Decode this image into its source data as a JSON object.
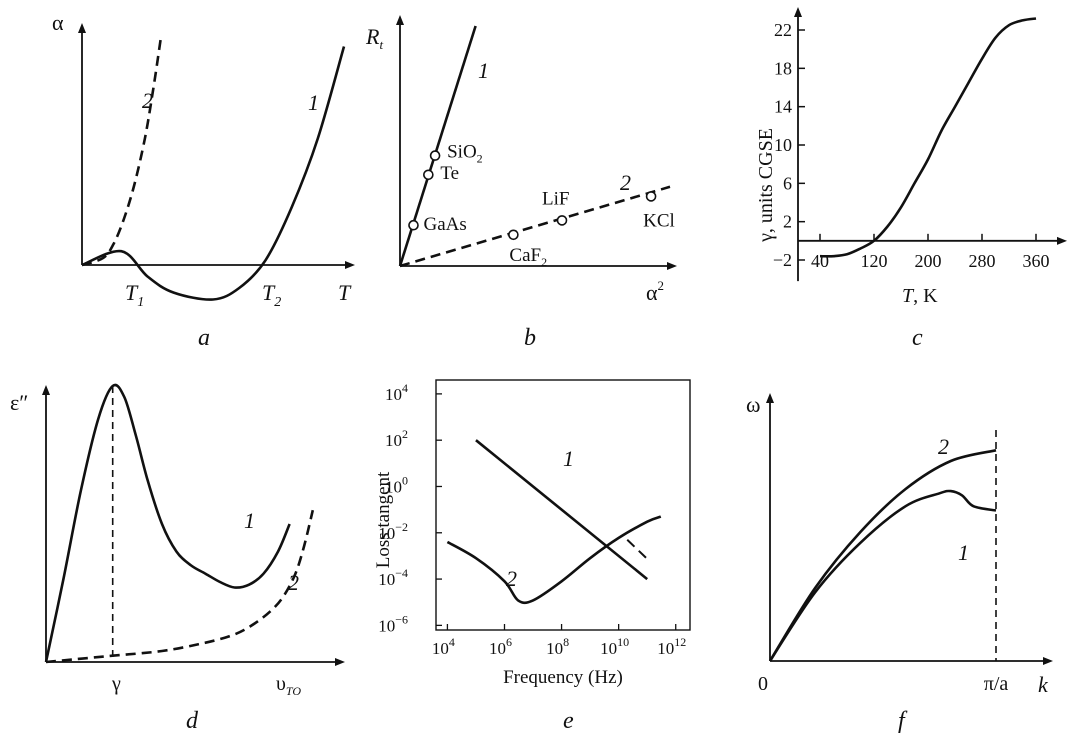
{
  "panels": {
    "a": {
      "caption": "a",
      "ylabel": "α",
      "xlabel": "T",
      "t1": "T",
      "t1_sub": "1",
      "t2": "T",
      "t2_sub": "2",
      "curve1": "1",
      "curve2": "2"
    },
    "b": {
      "caption": "b",
      "ylabel": "R",
      "ylabel_sub": "t",
      "xlabel": "α",
      "xlabel_sup": "2",
      "line1": "1",
      "line2": "2"
    },
    "c": {
      "caption": "c",
      "ylabel": "γ, units CGSE",
      "xlabel_italic": "T",
      "xlabel_rest": ", K"
    },
    "d": {
      "caption": "d",
      "ylabel": "ε″",
      "xtick1": "γ",
      "xtick2": "υ",
      "xtick2_sub": "TO",
      "curve1": "1",
      "curve2": "2"
    },
    "e": {
      "caption": "e",
      "ylabel": "Loss tangent",
      "xlabel": "Frequency (Hz)",
      "line1": "1",
      "curve2": "2"
    },
    "f": {
      "caption": "f",
      "ylabel": "ω",
      "xlabel": "k",
      "origin": "0",
      "xtick": "π/a",
      "curve1": "1",
      "curve2": "2"
    }
  },
  "chart_data": [
    {
      "panel": "a",
      "type": "line",
      "series": [
        {
          "name": "1",
          "x": [
            0.0,
            0.15,
            0.25,
            0.35,
            0.5,
            0.6,
            0.7,
            0.8,
            0.9,
            1.0
          ],
          "y": [
            0.0,
            0.06,
            -0.05,
            -0.12,
            -0.15,
            -0.1,
            0.02,
            0.25,
            0.55,
            0.95
          ]
        },
        {
          "name": "2",
          "x": [
            0.0,
            0.08,
            0.12,
            0.16,
            0.2,
            0.24,
            0.27,
            0.3
          ],
          "y": [
            0.0,
            0.03,
            0.09,
            0.2,
            0.35,
            0.55,
            0.75,
            0.98
          ]
        }
      ]
    },
    {
      "panel": "b",
      "type": "scatter",
      "series": [
        {
          "name": "1",
          "x": [
            0.0,
            0.28
          ],
          "y": [
            0.0,
            1.0
          ]
        },
        {
          "name": "2",
          "x": [
            0.0,
            1.0
          ],
          "y": [
            0.0,
            0.33
          ]
        }
      ],
      "points": [
        {
          "label": "GaAs",
          "sub": "",
          "x": 0.05,
          "y": 0.17
        },
        {
          "label": "Te",
          "sub": "",
          "x": 0.105,
          "y": 0.38
        },
        {
          "label": "SiO",
          "sub": "2",
          "x": 0.13,
          "y": 0.46
        },
        {
          "label": "CaF",
          "sub": "2",
          "x": 0.42,
          "y": 0.13
        },
        {
          "label": "LiF",
          "sub": "",
          "x": 0.6,
          "y": 0.19
        },
        {
          "label": "KCl",
          "sub": "",
          "x": 0.93,
          "y": 0.29
        }
      ]
    },
    {
      "panel": "c",
      "type": "line",
      "xticks": [
        40,
        120,
        200,
        280,
        360
      ],
      "yticks": [
        -2,
        2,
        6,
        10,
        14,
        18,
        22
      ],
      "xlim": [
        0,
        380
      ],
      "ylim": [
        -4,
        25
      ],
      "series": [
        {
          "name": "",
          "x": [
            40,
            60,
            80,
            100,
            120,
            140,
            160,
            180,
            200,
            220,
            240,
            260,
            280,
            300,
            320,
            340,
            360
          ],
          "y": [
            -1.6,
            -1.6,
            -1.4,
            -0.8,
            0.0,
            1.5,
            3.5,
            6.0,
            8.5,
            11.5,
            14.0,
            16.5,
            19.0,
            21.2,
            22.5,
            23.0,
            23.2
          ]
        }
      ]
    },
    {
      "panel": "d",
      "type": "line",
      "series": [
        {
          "name": "1",
          "x": [
            0.0,
            0.06,
            0.12,
            0.18,
            0.23,
            0.27,
            0.31,
            0.35,
            0.4,
            0.45,
            0.5,
            0.55,
            0.6,
            0.65,
            0.7,
            0.75,
            0.8,
            0.84
          ],
          "y": [
            0.0,
            0.3,
            0.62,
            0.88,
            1.0,
            0.96,
            0.82,
            0.66,
            0.5,
            0.4,
            0.35,
            0.32,
            0.29,
            0.27,
            0.28,
            0.32,
            0.4,
            0.5
          ]
        },
        {
          "name": "2",
          "x": [
            0.0,
            0.2,
            0.4,
            0.55,
            0.65,
            0.72,
            0.78,
            0.82,
            0.86,
            0.89,
            0.92
          ],
          "y": [
            0.0,
            0.02,
            0.04,
            0.07,
            0.1,
            0.14,
            0.19,
            0.24,
            0.32,
            0.42,
            0.55
          ]
        }
      ]
    },
    {
      "panel": "e",
      "type": "line",
      "ylog": true,
      "xticks": [
        "10^4",
        "10^6",
        "10^8",
        "10^10",
        "10^12"
      ],
      "yticks": [
        "10^-6",
        "10^-4",
        "10^-2",
        "10^0",
        "10^2",
        "10^4"
      ],
      "series": [
        {
          "name": "1",
          "x": [
            100000.0,
            1000000.0,
            10000000.0,
            100000000.0,
            1000000000.0,
            10000000000.0,
            100000000000.0
          ],
          "y": [
            100,
            10,
            1,
            0.1,
            0.01,
            0.001,
            0.0001
          ]
        },
        {
          "name": "2",
          "x": [
            10000.0,
            100000.0,
            1000000.0,
            3000000.0,
            10000000.0,
            100000000.0,
            1000000000.0,
            10000000000.0,
            100000000000.0,
            300000000000.0
          ],
          "y": [
            0.004,
            0.0008,
            8e-05,
            1.2e-05,
            1.2e-05,
            8e-05,
            0.0008,
            0.006,
            0.03,
            0.05
          ]
        }
      ]
    },
    {
      "panel": "f",
      "type": "line",
      "series": [
        {
          "name": "2",
          "x": [
            0.0,
            0.2,
            0.4,
            0.6,
            0.8,
            1.0
          ],
          "y": [
            0.0,
            0.34,
            0.6,
            0.8,
            0.93,
            0.98
          ]
        },
        {
          "name": "1",
          "x": [
            0.0,
            0.2,
            0.4,
            0.6,
            0.75,
            0.8,
            0.85,
            0.9,
            1.0
          ],
          "y": [
            0.0,
            0.32,
            0.55,
            0.72,
            0.78,
            0.79,
            0.77,
            0.72,
            0.7
          ]
        }
      ]
    }
  ]
}
